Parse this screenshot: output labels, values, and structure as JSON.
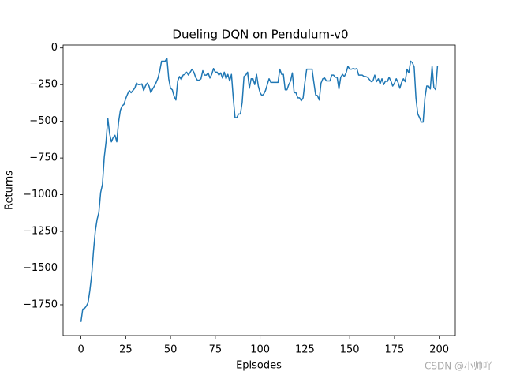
{
  "chart_data": {
    "type": "line",
    "title": "Dueling DQN on Pendulum-v0",
    "x_label": "Episodes",
    "y_label": "Returns",
    "watermark": "CSDN @小帅吖",
    "xlim": [
      -9.95,
      208.95
    ],
    "xticks": [
      0,
      25,
      50,
      75,
      100,
      125,
      150,
      175,
      200
    ],
    "ylim": [
      -1960,
      20
    ],
    "yticks": [
      0,
      {
        "value": -250,
        "label": "−250"
      },
      {
        "value": -500,
        "label": "−500"
      },
      {
        "value": -750,
        "label": "−750"
      },
      {
        "value": -1000,
        "label": "−1000"
      },
      {
        "value": -1250,
        "label": "−1250"
      },
      {
        "value": -1500,
        "label": "−1500"
      },
      {
        "value": -1750,
        "label": "−1750"
      }
    ],
    "series": [
      {
        "color": "#1f77b4",
        "values": [
          -1867,
          -1780,
          -1775,
          -1760,
          -1735,
          -1650,
          -1545,
          -1385,
          -1250,
          -1170,
          -1120,
          -985,
          -930,
          -745,
          -640,
          -480,
          -585,
          -640,
          -610,
          -595,
          -640,
          -505,
          -425,
          -395,
          -385,
          -345,
          -315,
          -290,
          -305,
          -290,
          -275,
          -240,
          -250,
          -250,
          -245,
          -290,
          -260,
          -240,
          -260,
          -305,
          -280,
          -260,
          -235,
          -205,
          -155,
          -90,
          -90,
          -90,
          -70,
          -210,
          -275,
          -285,
          -330,
          -355,
          -225,
          -195,
          -215,
          -185,
          -180,
          -165,
          -185,
          -165,
          -145,
          -165,
          -200,
          -220,
          -220,
          -210,
          -155,
          -185,
          -185,
          -170,
          -205,
          -180,
          -140,
          -165,
          -165,
          -185,
          -170,
          -205,
          -165,
          -210,
          -180,
          -225,
          -180,
          -340,
          -475,
          -475,
          -450,
          -450,
          -370,
          -195,
          -185,
          -165,
          -275,
          -210,
          -210,
          -250,
          -180,
          -260,
          -305,
          -325,
          -315,
          -290,
          -250,
          -210,
          -235,
          -235,
          -235,
          -235,
          -235,
          -145,
          -180,
          -180,
          -285,
          -285,
          -250,
          -225,
          -170,
          -305,
          -305,
          -340,
          -340,
          -360,
          -340,
          -235,
          -145,
          -145,
          -145,
          -145,
          -235,
          -320,
          -325,
          -355,
          -240,
          -210,
          -205,
          -225,
          -225,
          -225,
          -185,
          -185,
          -200,
          -200,
          -280,
          -200,
          -180,
          -195,
          -170,
          -125,
          -145,
          -145,
          -140,
          -145,
          -140,
          -185,
          -185,
          -185,
          -195,
          -195,
          -200,
          -215,
          -230,
          -225,
          -185,
          -230,
          -210,
          -245,
          -210,
          -250,
          -225,
          -230,
          -200,
          -225,
          -260,
          -240,
          -210,
          -235,
          -275,
          -235,
          -210,
          -230,
          -145,
          -170,
          -90,
          -100,
          -130,
          -340,
          -450,
          -475,
          -505,
          -505,
          -340,
          -260,
          -260,
          -280,
          -125,
          -270,
          -285,
          -125
        ]
      }
    ]
  }
}
